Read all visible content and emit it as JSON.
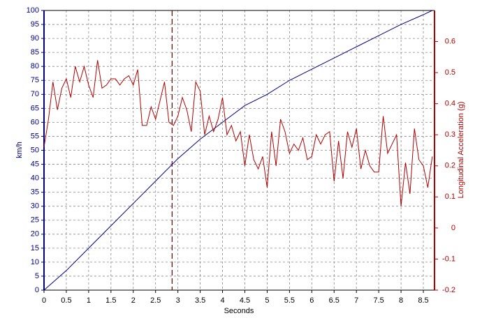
{
  "chart_data": {
    "type": "line",
    "xlabel": "Seconds",
    "ylabel": "km/h",
    "y2label": "Longitudinal Acceleration (g)",
    "xlim": [
      0,
      8.75
    ],
    "xticks": [
      0,
      0.5,
      1,
      1.5,
      2,
      2.5,
      3,
      3.5,
      4,
      4.5,
      5,
      5.5,
      6,
      6.5,
      7,
      7.5,
      8,
      8.5
    ],
    "ylim": [
      0,
      100
    ],
    "yticks": [
      0,
      5,
      10,
      15,
      20,
      25,
      30,
      35,
      40,
      45,
      50,
      55,
      60,
      65,
      70,
      75,
      80,
      85,
      90,
      95,
      100
    ],
    "y2lim": [
      -0.2,
      0.7
    ],
    "y2ticks": [
      -0.2,
      -0.1,
      0,
      0.1,
      0.2,
      0.3,
      0.4,
      0.5,
      0.6
    ],
    "grid": true,
    "ycolor": "#000080",
    "y2color": "#b00000",
    "marker_x": 2.87,
    "series": [
      {
        "color": "#000080",
        "x": [
          0,
          0.5,
          1,
          1.5,
          2,
          2.5,
          3,
          3.5,
          4,
          4.5,
          5,
          5.5,
          6,
          6.5,
          7,
          7.5,
          8,
          8.5,
          8.7
        ],
        "values": [
          0,
          7,
          15,
          23,
          31,
          39,
          47,
          54,
          60,
          66,
          70,
          75,
          79,
          83,
          87,
          91,
          95,
          98.5,
          100
        ]
      },
      {
        "color": "#b00000",
        "axis": "y2",
        "x": [
          0,
          0.1,
          0.2,
          0.3,
          0.4,
          0.5,
          0.6,
          0.7,
          0.8,
          0.9,
          1,
          1.1,
          1.2,
          1.3,
          1.4,
          1.5,
          1.6,
          1.7,
          1.8,
          1.9,
          2,
          2.1,
          2.2,
          2.3,
          2.4,
          2.5,
          2.6,
          2.7,
          2.8,
          2.9,
          3,
          3.1,
          3.2,
          3.3,
          3.4,
          3.5,
          3.6,
          3.7,
          3.8,
          3.9,
          4,
          4.1,
          4.2,
          4.3,
          4.4,
          4.5,
          4.6,
          4.7,
          4.8,
          4.9,
          5,
          5.1,
          5.2,
          5.3,
          5.4,
          5.5,
          5.6,
          5.7,
          5.8,
          5.9,
          6,
          6.1,
          6.2,
          6.3,
          6.4,
          6.5,
          6.6,
          6.7,
          6.8,
          6.9,
          7,
          7.1,
          7.2,
          7.3,
          7.4,
          7.5,
          7.6,
          7.7,
          7.8,
          7.9,
          8,
          8.1,
          8.2,
          8.3,
          8.4,
          8.5,
          8.6,
          8.7
        ],
        "values": [
          0.26,
          0.35,
          0.47,
          0.38,
          0.45,
          0.48,
          0.42,
          0.52,
          0.47,
          0.52,
          0.46,
          0.42,
          0.54,
          0.45,
          0.46,
          0.48,
          0.48,
          0.46,
          0.48,
          0.49,
          0.46,
          0.51,
          0.33,
          0.33,
          0.39,
          0.35,
          0.41,
          0.47,
          0.34,
          0.33,
          0.36,
          0.42,
          0.38,
          0.31,
          0.47,
          0.44,
          0.3,
          0.36,
          0.31,
          0.35,
          0.42,
          0.3,
          0.33,
          0.28,
          0.31,
          0.2,
          0.3,
          0.22,
          0.19,
          0.23,
          0.13,
          0.31,
          0.2,
          0.35,
          0.31,
          0.24,
          0.27,
          0.25,
          0.29,
          0.22,
          0.23,
          0.3,
          0.27,
          0.3,
          0.31,
          0.15,
          0.28,
          0.16,
          0.31,
          0.26,
          0.32,
          0.19,
          0.25,
          0.2,
          0.18,
          0.18,
          0.36,
          0.24,
          0.27,
          0.3,
          0.07,
          0.21,
          0.11,
          0.32,
          0.22,
          0.2,
          0.13,
          0.23
        ]
      }
    ]
  }
}
